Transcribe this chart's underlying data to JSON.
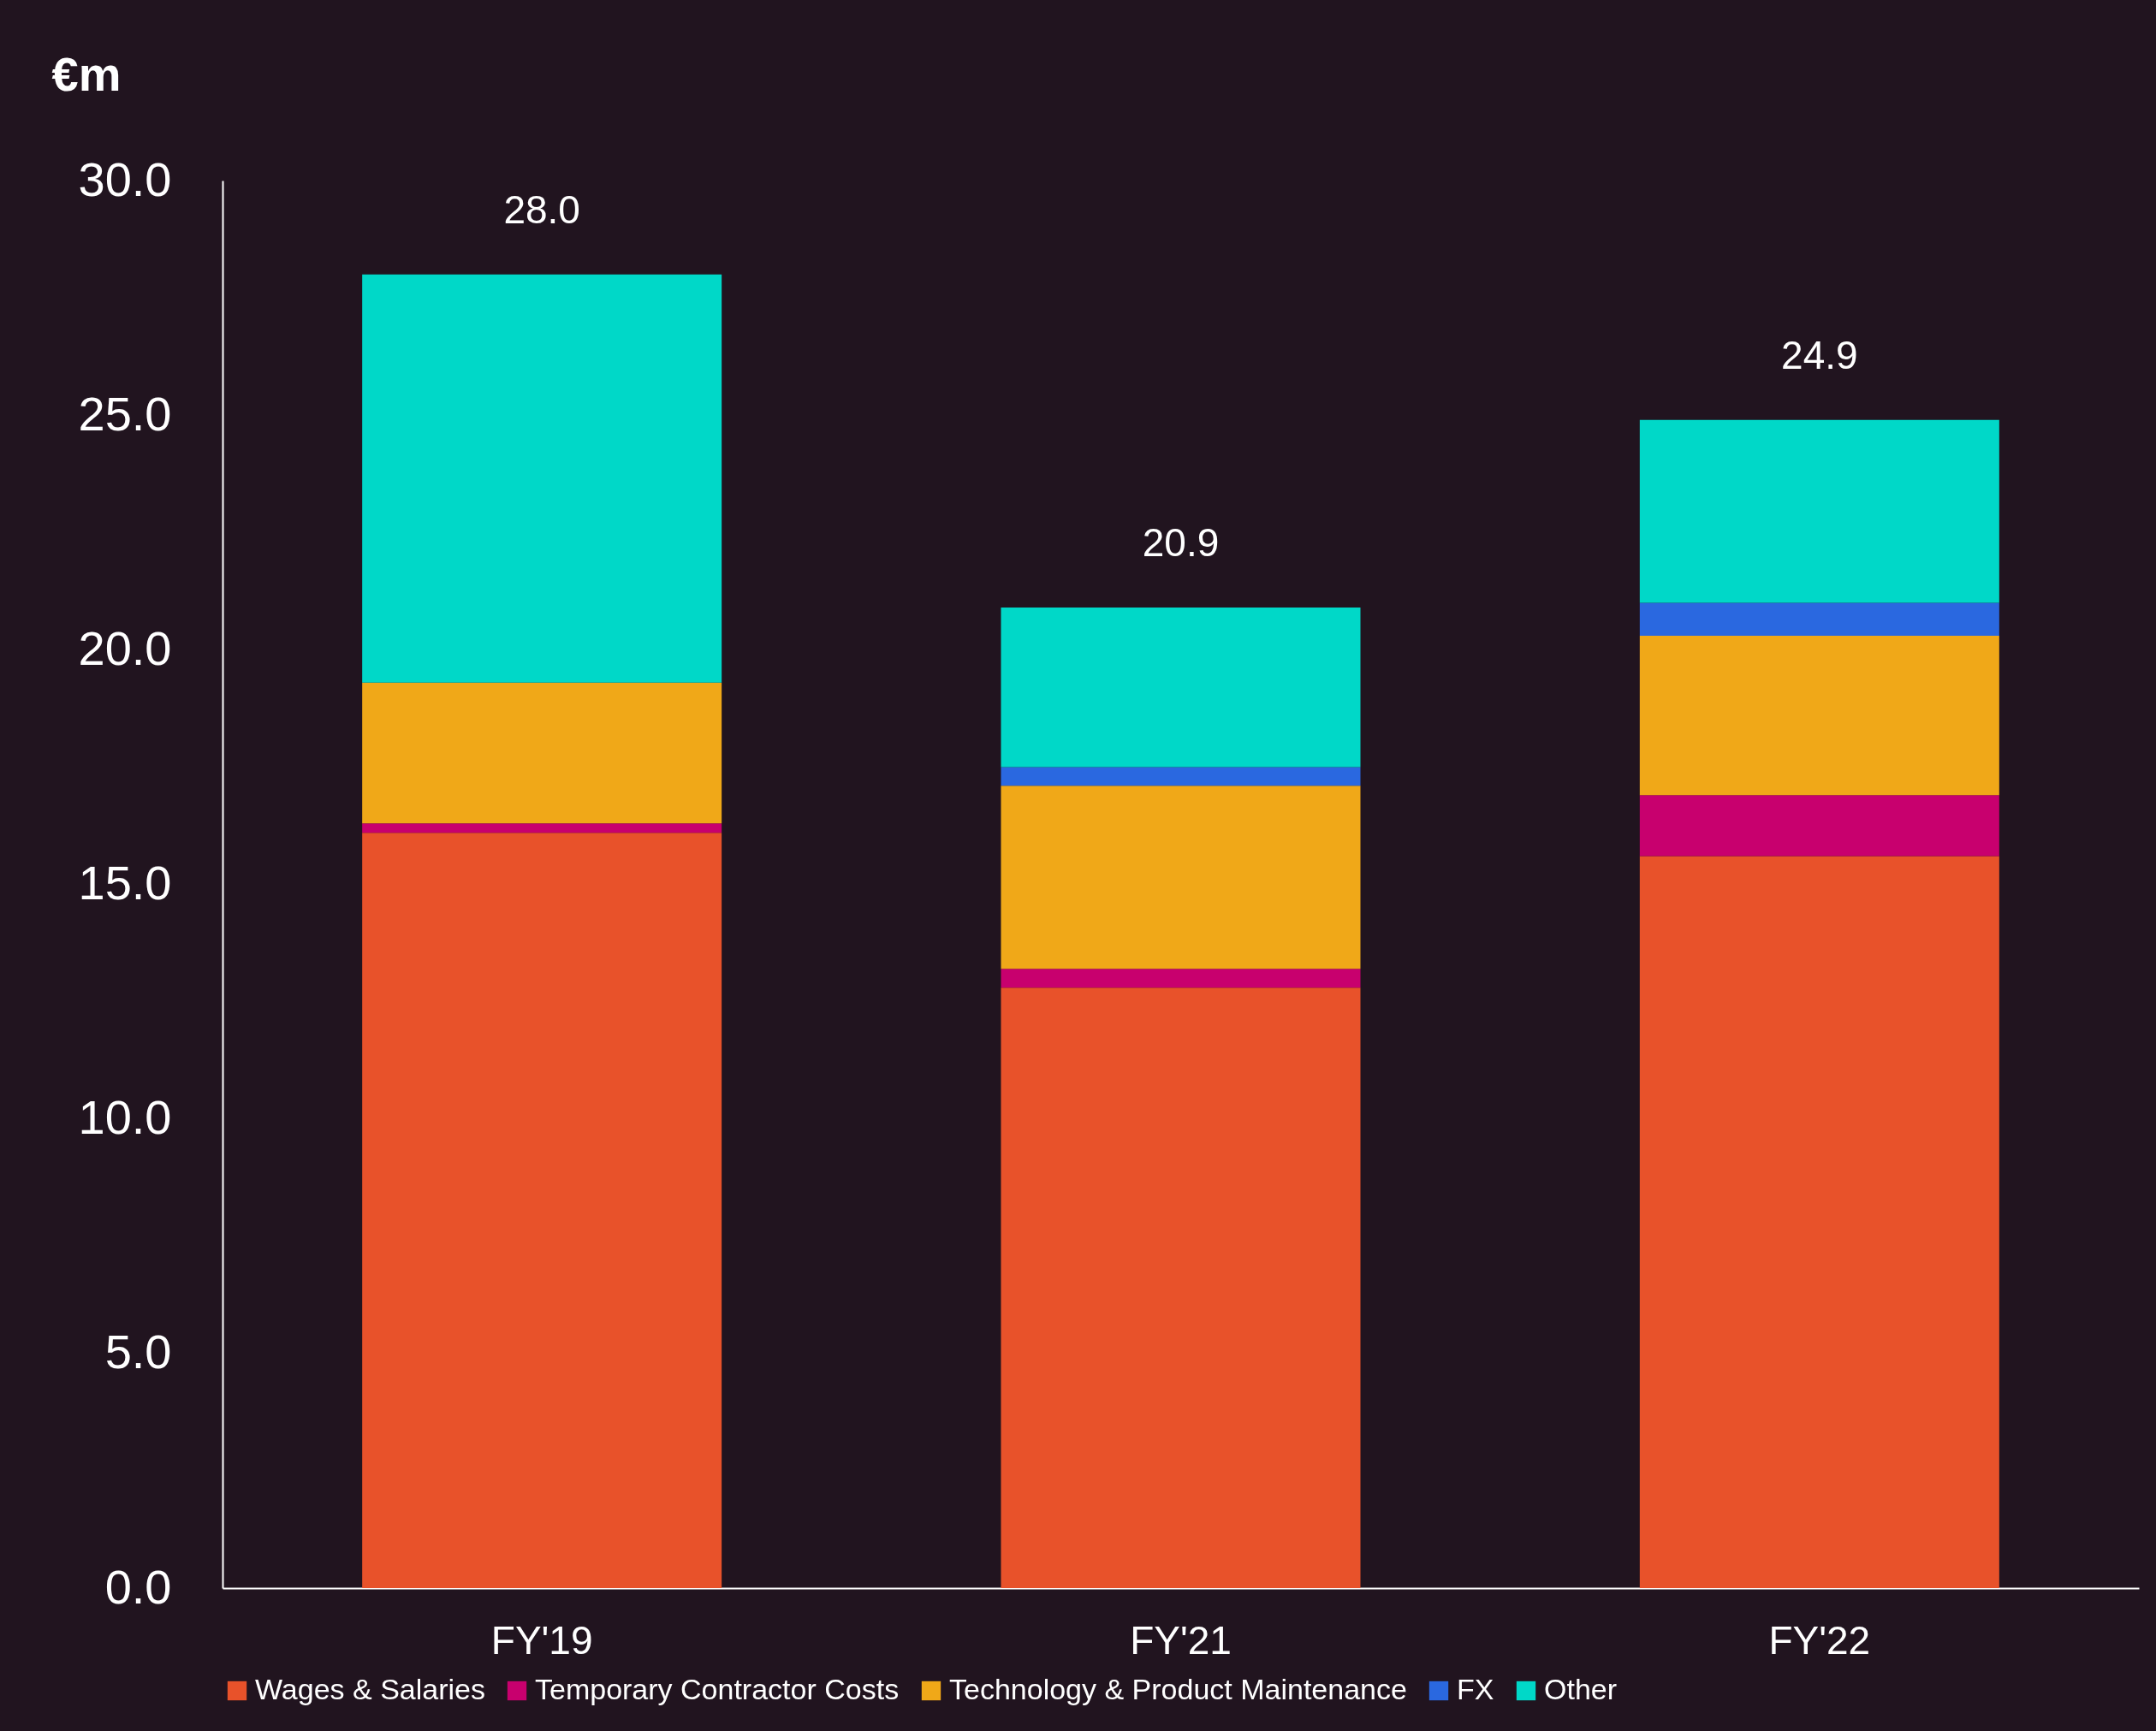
{
  "chart_data": {
    "type": "bar",
    "stacked": true,
    "ylabel": "€m",
    "categories": [
      "FY'19",
      "FY'21",
      "FY'22"
    ],
    "series": [
      {
        "name": "Wages & Salaries",
        "color": "#e8522a",
        "values": [
          16.1,
          12.8,
          15.6
        ]
      },
      {
        "name": "Temporary Contractor Costs",
        "color": "#c8006e",
        "values": [
          0.2,
          0.4,
          1.3
        ]
      },
      {
        "name": "Technology & Product Maintenance",
        "color": "#f0a818",
        "values": [
          3.0,
          3.9,
          3.4
        ]
      },
      {
        "name": "FX",
        "color": "#2a68e0",
        "values": [
          null,
          0.4,
          0.7
        ]
      },
      {
        "name": "Other",
        "color": "#00d8c8",
        "values": [
          8.7,
          3.4,
          3.9
        ]
      }
    ],
    "totals": [
      "28.0",
      "20.9",
      "24.9"
    ],
    "ylim": [
      0,
      30
    ],
    "yticks": [
      {
        "value": 0,
        "label": "0.0"
      },
      {
        "value": 5,
        "label": "5.0"
      },
      {
        "value": 10,
        "label": "10.0"
      },
      {
        "value": 15,
        "label": "15.0"
      },
      {
        "value": 20,
        "label": "20.0"
      },
      {
        "value": 25,
        "label": "25.0"
      },
      {
        "value": 30,
        "label": "30.0"
      }
    ],
    "grid": false,
    "legend": "bottom"
  }
}
